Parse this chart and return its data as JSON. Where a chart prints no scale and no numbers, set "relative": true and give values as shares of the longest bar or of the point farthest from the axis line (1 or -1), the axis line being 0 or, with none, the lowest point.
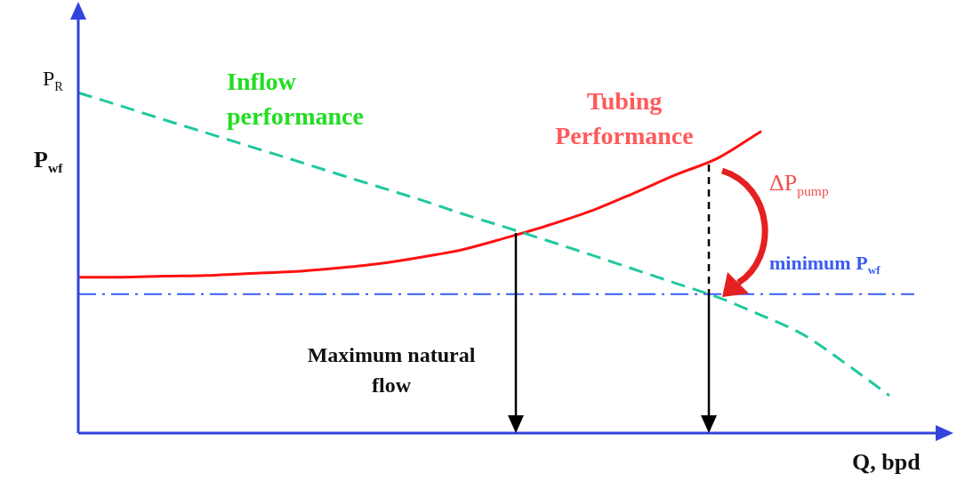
{
  "chart_data": {
    "type": "line",
    "relative": true,
    "xlabel": "Q, bpd",
    "ylabel": "P$_{wf}$",
    "legend": false,
    "marker": "none",
    "categories": [
      null,
      null,
      null,
      null,
      null,
      null,
      null,
      null,
      null,
      null,
      null,
      null,
      null,
      null,
      null,
      null,
      null,
      null,
      null,
      null,
      null
    ],
    "series": [
      {
        "name": "Inflow performance",
        "color": "#20c8a0",
        "line_style": "dashed",
        "values": [
          1.0,
          0.961,
          0.921,
          0.882,
          0.843,
          0.804,
          0.764,
          0.725,
          0.686,
          0.644,
          0.605,
          0.565,
          0.524,
          0.482,
          0.44,
          0.398,
          0.346,
          0.288,
          0.202,
          0.11,
          null
        ]
      },
      {
        "name": "Tubing Performance",
        "color": "#ff1010",
        "line_style": "solid",
        "values": [
          0.458,
          0.458,
          0.461,
          0.463,
          0.469,
          0.474,
          0.484,
          0.497,
          0.516,
          0.539,
          0.573,
          0.61,
          0.652,
          0.704,
          0.759,
          0.809,
          0.887,
          null,
          null,
          null,
          null
        ]
      }
    ],
    "ref_lines": [
      {
        "axis": "y",
        "value": 0.408,
        "label": "minimum P$_{wf}$",
        "color": "#3a5cf0",
        "line_style": "dashdot"
      }
    ],
    "annotations": [
      "P$_{R}$",
      "ΔP$_{pump}$",
      "Maximum natural flow"
    ]
  }
}
